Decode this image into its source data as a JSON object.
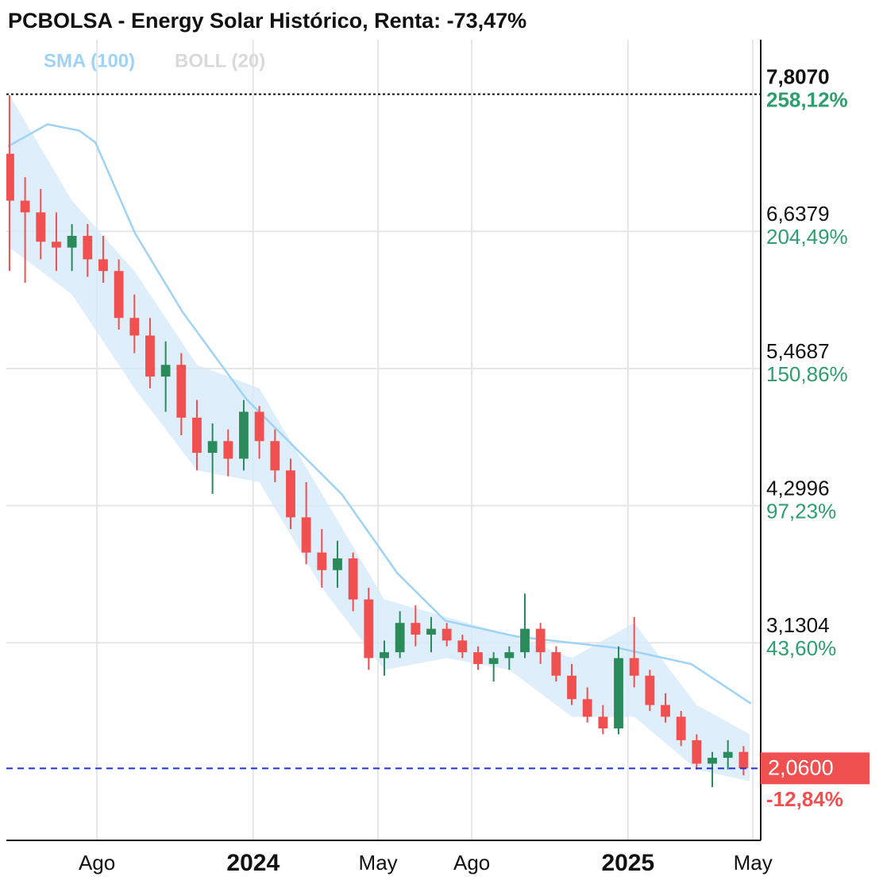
{
  "chart_data": {
    "type": "candlestick",
    "title": "PCBOLSA - Energy Solar Histórico, Renta: -73,47%",
    "x": [
      5.2,
      5.7,
      6.2,
      6.7,
      7.2,
      7.7,
      8.2,
      8.7,
      9.2,
      9.7,
      10.2,
      10.7,
      11.2,
      11.7,
      12.2,
      12.7,
      13.2,
      13.7,
      14.2,
      14.7,
      15.2,
      15.7,
      16.2,
      16.7,
      17.2,
      17.7,
      18.2,
      18.7,
      19.2,
      19.7,
      20.2,
      20.7,
      21.2,
      21.7,
      22.2,
      22.7,
      23.2,
      23.7,
      24.2,
      24.7,
      25.2,
      25.7,
      26.2,
      26.7,
      27.2,
      27.7,
      28.2,
      28.7
    ],
    "open": [
      7.3,
      6.9,
      6.8,
      6.55,
      6.5,
      6.6,
      6.4,
      6.3,
      5.9,
      5.75,
      5.4,
      5.5,
      5.05,
      4.75,
      4.85,
      4.7,
      5.1,
      4.85,
      4.6,
      4.2,
      3.9,
      3.75,
      3.85,
      3.5,
      3.0,
      3.05,
      3.3,
      3.2,
      3.25,
      3.15,
      3.05,
      2.95,
      3.0,
      3.05,
      3.25,
      3.05,
      2.85,
      2.65,
      2.5,
      2.4,
      3.0,
      2.85,
      2.6,
      2.5,
      2.3,
      2.1,
      2.15,
      2.2
    ],
    "high": [
      7.8,
      7.1,
      7.0,
      6.8,
      6.7,
      6.7,
      6.6,
      6.4,
      6.1,
      5.9,
      5.7,
      5.6,
      5.2,
      5.0,
      4.95,
      5.2,
      5.15,
      4.95,
      4.7,
      4.5,
      4.1,
      4.0,
      3.9,
      3.6,
      3.15,
      3.4,
      3.45,
      3.35,
      3.3,
      3.2,
      3.1,
      3.05,
      3.1,
      3.55,
      3.3,
      3.1,
      2.95,
      2.75,
      2.6,
      3.1,
      3.35,
      2.9,
      2.7,
      2.55,
      2.35,
      2.2,
      2.3,
      2.25
    ],
    "low": [
      6.3,
      6.2,
      6.4,
      6.3,
      6.3,
      6.25,
      6.2,
      5.8,
      5.6,
      5.3,
      5.1,
      4.9,
      4.6,
      4.4,
      4.55,
      4.6,
      4.7,
      4.5,
      4.1,
      3.8,
      3.6,
      3.6,
      3.4,
      2.9,
      2.85,
      3.0,
      3.1,
      3.05,
      3.1,
      3.0,
      2.9,
      2.8,
      2.9,
      3.0,
      2.95,
      2.8,
      2.6,
      2.45,
      2.35,
      2.35,
      2.75,
      2.55,
      2.45,
      2.25,
      2.05,
      1.9,
      2.05,
      2.0
    ],
    "close": [
      6.9,
      6.8,
      6.55,
      6.5,
      6.6,
      6.4,
      6.3,
      5.9,
      5.75,
      5.4,
      5.5,
      5.05,
      4.75,
      4.85,
      4.7,
      5.1,
      4.85,
      4.6,
      4.2,
      3.9,
      3.75,
      3.85,
      3.5,
      3.0,
      3.05,
      3.3,
      3.2,
      3.25,
      3.15,
      3.05,
      2.95,
      3.0,
      3.05,
      3.25,
      3.05,
      2.85,
      2.65,
      2.5,
      2.4,
      3.0,
      2.85,
      2.6,
      2.5,
      2.3,
      2.1,
      2.15,
      2.2,
      2.06
    ],
    "up_color": "#2a8a5a",
    "down_color": "#f0504f",
    "sma": {
      "name": "SMA (100)",
      "color": "#9fd3f5",
      "x": [
        5.15,
        6.42,
        7.44,
        7.95,
        9.22,
        10.75,
        12.79,
        15.84,
        17.62,
        19.15,
        21.44,
        24.74,
        27.03,
        28.94
      ],
      "values": [
        7.362,
        7.551,
        7.497,
        7.396,
        6.621,
        5.947,
        5.206,
        4.397,
        3.723,
        3.319,
        3.184,
        3.083,
        2.949,
        2.612
      ]
    },
    "boll": {
      "name": "BOLL (20)",
      "color": "#d6ebfa",
      "label_color": "#d9d9d9",
      "x": [
        5.2,
        7.2,
        9.2,
        11.2,
        13.2,
        15.2,
        17.2,
        19.2,
        21.2,
        23.2,
        25.2,
        27.2,
        28.9
      ],
      "upper": [
        7.8,
        6.9,
        6.3,
        5.5,
        5.3,
        4.4,
        3.5,
        3.35,
        3.2,
        3.0,
        3.3,
        2.6,
        2.35
      ],
      "lower": [
        6.5,
        6.1,
        5.3,
        4.6,
        4.5,
        3.6,
        2.9,
        3.0,
        2.9,
        2.5,
        2.5,
        2.05,
        1.95
      ]
    },
    "xlim": [
      5.1,
      29.25
    ],
    "xticks": [
      {
        "value": 8,
        "label": "Ago"
      },
      {
        "value": 13,
        "label": "2024"
      },
      {
        "value": 17,
        "label": "May"
      },
      {
        "value": 20,
        "label": "Ago"
      },
      {
        "value": 25,
        "label": "2025"
      },
      {
        "value": 29,
        "label": "May"
      }
    ],
    "ylim": [
      1.446,
      8.272
    ],
    "yticks": [
      {
        "value": 7.807,
        "label": "7,8070"
      },
      {
        "value": 6.6379,
        "label": "6,6379"
      },
      {
        "value": 5.4687,
        "label": "5,4687"
      },
      {
        "value": 4.2996,
        "label": "4,2996"
      },
      {
        "value": 3.1304,
        "label": "3,1304"
      }
    ],
    "y2lim": [
      -33.67,
      279.45
    ],
    "y2ticks": [
      {
        "value": 258.12,
        "label": "258,12%"
      },
      {
        "value": 204.49,
        "label": "204,49%"
      },
      {
        "value": 150.86,
        "label": "150,86%"
      },
      {
        "value": 97.23,
        "label": "97,23%"
      },
      {
        "value": 43.6,
        "label": "43,60%"
      }
    ],
    "last_price": {
      "value": 2.06,
      "label": "2,0600",
      "change_label": "-12,84%",
      "color": "#f0504f",
      "line_color": "#1f2fe0"
    },
    "grid": true
  }
}
